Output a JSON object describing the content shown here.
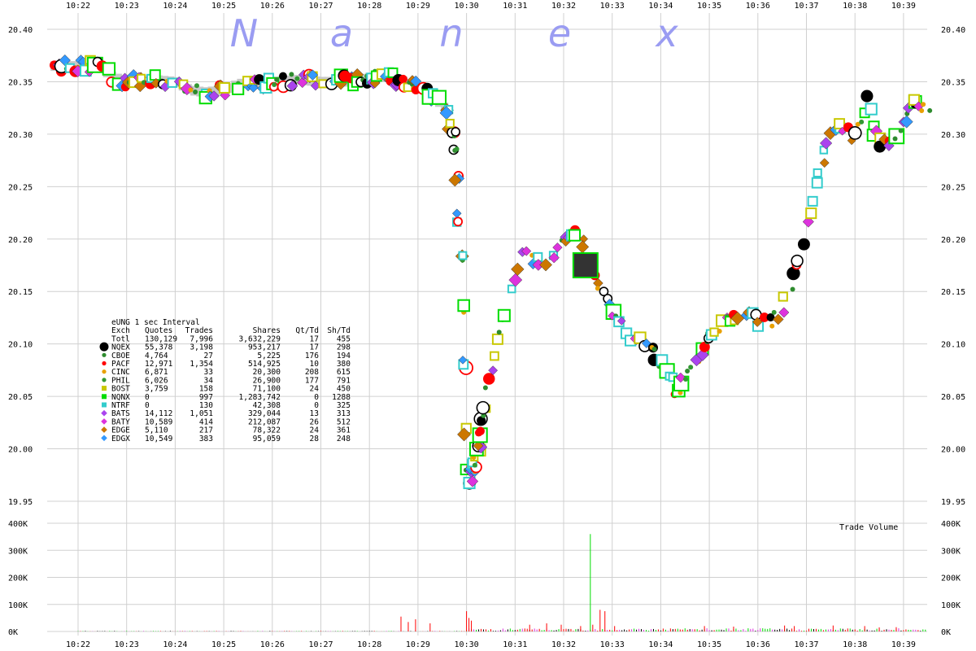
{
  "chart_data": {
    "type": "scatter",
    "title": "",
    "watermark": [
      "N",
      "a",
      "n",
      "e",
      "x"
    ],
    "xlabel": "",
    "ylabel": "",
    "x_ticks": [
      "10:22",
      "10:23",
      "10:24",
      "10:25",
      "10:26",
      "10:27",
      "10:28",
      "10:29",
      "10:30",
      "10:31",
      "10:32",
      "10:33",
      "10:34",
      "10:35",
      "10:36",
      "10:37",
      "10:38",
      "10:39"
    ],
    "price_ticks": [
      "20.40",
      "20.35",
      "20.30",
      "20.25",
      "20.20",
      "20.15",
      "20.10",
      "20.05",
      "20.00",
      "19.95"
    ],
    "ylim_price": [
      19.95,
      20.4
    ],
    "volume_ticks": [
      "400K",
      "300K",
      "200K",
      "100K",
      "0K"
    ],
    "ylim_volume": [
      0,
      400000
    ],
    "volume_title": "Trade Volume",
    "grid": true,
    "colors": {
      "NQEX": "#000000",
      "CBOE": "#2e8b2e",
      "PACF": "#ff0000",
      "CINC": "#e8a000",
      "PHIL": "#339933",
      "BOST": "#c8c800",
      "NQNX": "#00dd00",
      "NTRF": "#33cccc",
      "BATS": "#aa44ee",
      "BATY": "#dd33dd",
      "EDGE": "#cc7700",
      "EDGX": "#3399ff",
      "band": "#c8c8c8",
      "grid": "#d0d0d0",
      "watermark": "#9a9cf2"
    },
    "price_path": [
      [
        0,
        20.365
      ],
      [
        0.4,
        20.365
      ],
      [
        0.7,
        20.355
      ],
      [
        1.0,
        20.35
      ],
      [
        1.5,
        20.352
      ],
      [
        2.0,
        20.35
      ],
      [
        2.3,
        20.342
      ],
      [
        2.6,
        20.34
      ],
      [
        3.0,
        20.342
      ],
      [
        3.3,
        20.348
      ],
      [
        3.6,
        20.349
      ],
      [
        4.0,
        20.35
      ],
      [
        4.5,
        20.352
      ],
      [
        5.0,
        20.35
      ],
      [
        5.5,
        20.35
      ],
      [
        6.0,
        20.354
      ],
      [
        6.3,
        20.355
      ],
      [
        6.6,
        20.352
      ],
      [
        7.0,
        20.345
      ],
      [
        7.3,
        20.336
      ],
      [
        7.55,
        20.325
      ],
      [
        7.75,
        20.3
      ],
      [
        7.82,
        20.25
      ],
      [
        7.88,
        20.18
      ],
      [
        7.94,
        20.1
      ],
      [
        7.98,
        20.02
      ],
      [
        8.02,
        19.985
      ],
      [
        8.1,
        19.97
      ],
      [
        8.2,
        19.99
      ],
      [
        8.35,
        20.03
      ],
      [
        8.5,
        20.07
      ],
      [
        8.7,
        20.11
      ],
      [
        8.85,
        20.14
      ],
      [
        9.0,
        20.17
      ],
      [
        9.2,
        20.19
      ],
      [
        9.5,
        20.175
      ],
      [
        9.8,
        20.18
      ],
      [
        10.0,
        20.2
      ],
      [
        10.2,
        20.21
      ],
      [
        10.4,
        20.195
      ],
      [
        10.6,
        20.175
      ],
      [
        10.8,
        20.15
      ],
      [
        11.0,
        20.13
      ],
      [
        11.3,
        20.11
      ],
      [
        11.6,
        20.105
      ],
      [
        11.9,
        20.09
      ],
      [
        12.1,
        20.075
      ],
      [
        12.3,
        20.055
      ],
      [
        12.5,
        20.07
      ],
      [
        12.8,
        20.09
      ],
      [
        13.0,
        20.11
      ],
      [
        13.3,
        20.12
      ],
      [
        13.6,
        20.13
      ],
      [
        13.9,
        20.125
      ],
      [
        14.1,
        20.12
      ],
      [
        14.3,
        20.12
      ],
      [
        14.5,
        20.135
      ],
      [
        14.7,
        20.16
      ],
      [
        14.9,
        20.19
      ],
      [
        15.1,
        20.23
      ],
      [
        15.3,
        20.27
      ],
      [
        15.5,
        20.3
      ],
      [
        15.7,
        20.31
      ],
      [
        15.9,
        20.3
      ],
      [
        16.0,
        20.29
      ],
      [
        16.2,
        20.32
      ],
      [
        16.3,
        20.345
      ],
      [
        16.4,
        20.3
      ],
      [
        16.6,
        20.29
      ],
      [
        16.9,
        20.3
      ],
      [
        17.2,
        20.33
      ],
      [
        17.45,
        20.325
      ]
    ],
    "volume_spikes": [
      [
        6.65,
        55000
      ],
      [
        6.8,
        35000
      ],
      [
        6.95,
        45000
      ],
      [
        7.25,
        30000
      ],
      [
        8.0,
        75000
      ],
      [
        8.05,
        50000
      ],
      [
        8.1,
        40000
      ],
      [
        9.3,
        25000
      ],
      [
        9.65,
        30000
      ],
      [
        9.95,
        25000
      ],
      [
        10.35,
        20000
      ],
      [
        10.55,
        360000
      ],
      [
        10.6,
        25000
      ],
      [
        10.75,
        80000
      ],
      [
        10.85,
        75000
      ],
      [
        11.05,
        20000
      ],
      [
        12.9,
        20000
      ],
      [
        13.5,
        18000
      ],
      [
        14.55,
        22000
      ],
      [
        14.75,
        20000
      ],
      [
        15.55,
        22000
      ],
      [
        16.2,
        20000
      ],
      [
        16.5,
        15000
      ],
      [
        16.85,
        16000
      ]
    ],
    "legend": {
      "title": "eUNG 1 sec Interval",
      "headers": [
        "Exch",
        "Quotes",
        "Trades",
        "Shares",
        "Qt/Td",
        "Sh/Td"
      ],
      "rows": [
        {
          "exch": "Totl",
          "quotes": "130,129",
          "trades": "7,996",
          "shares": "3,632,229",
          "qttd": "17",
          "shtd": "455",
          "marker": "none",
          "color": "#000000"
        },
        {
          "exch": "NQEX",
          "quotes": "55,378",
          "trades": "3,198",
          "shares": "953,217",
          "qttd": "17",
          "shtd": "298",
          "marker": "big-circle",
          "color": "#000000"
        },
        {
          "exch": "CBOE",
          "quotes": "4,764",
          "trades": "27",
          "shares": "5,225",
          "qttd": "176",
          "shtd": "194",
          "marker": "dot",
          "color": "#2e8b2e"
        },
        {
          "exch": "PACF",
          "quotes": "12,971",
          "trades": "1,354",
          "shares": "514,925",
          "qttd": "10",
          "shtd": "380",
          "marker": "dot",
          "color": "#ff0000"
        },
        {
          "exch": "CINC",
          "quotes": "6,871",
          "trades": "33",
          "shares": "20,300",
          "qttd": "208",
          "shtd": "615",
          "marker": "dot",
          "color": "#e8a000"
        },
        {
          "exch": "PHIL",
          "quotes": "6,026",
          "trades": "34",
          "shares": "26,900",
          "qttd": "177",
          "shtd": "791",
          "marker": "dot",
          "color": "#339933"
        },
        {
          "exch": "BOST",
          "quotes": "3,759",
          "trades": "158",
          "shares": "71,100",
          "qttd": "24",
          "shtd": "450",
          "marker": "square",
          "color": "#c8c800"
        },
        {
          "exch": "NQNX",
          "quotes": "0",
          "trades": "997",
          "shares": "1,283,742",
          "qttd": "0",
          "shtd": "1288",
          "marker": "square",
          "color": "#00dd00"
        },
        {
          "exch": "NTRF",
          "quotes": "0",
          "trades": "130",
          "shares": "42,308",
          "qttd": "0",
          "shtd": "325",
          "marker": "square",
          "color": "#33cccc"
        },
        {
          "exch": "BATS",
          "quotes": "14,112",
          "trades": "1,051",
          "shares": "329,044",
          "qttd": "13",
          "shtd": "313",
          "marker": "diamond",
          "color": "#aa44ee"
        },
        {
          "exch": "BATY",
          "quotes": "10,589",
          "trades": "414",
          "shares": "212,087",
          "qttd": "26",
          "shtd": "512",
          "marker": "diamond",
          "color": "#dd33dd"
        },
        {
          "exch": "EDGE",
          "quotes": "5,110",
          "trades": "217",
          "shares": "78,322",
          "qttd": "24",
          "shtd": "361",
          "marker": "diamond",
          "color": "#cc7700"
        },
        {
          "exch": "EDGX",
          "quotes": "10,549",
          "trades": "383",
          "shares": "95,059",
          "qttd": "28",
          "shtd": "248",
          "marker": "diamond",
          "color": "#3399ff"
        }
      ]
    }
  }
}
